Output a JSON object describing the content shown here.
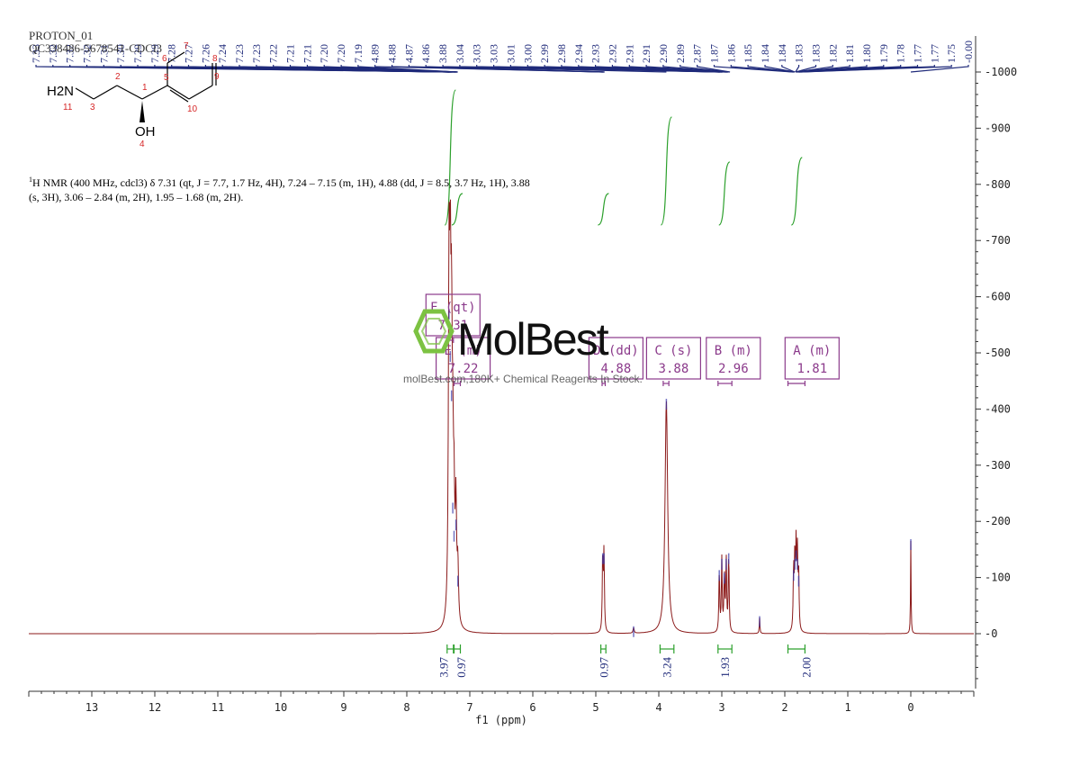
{
  "header": {
    "title_line1": "PROTON_01",
    "title_line2": "QC338486-5678541-CDCl3"
  },
  "description": {
    "nucleus_sup": "1",
    "text": "H NMR (400 MHz, cdcl3) δ 7.31 (qt, J = 7.7, 1.7 Hz, 4H), 7.24 – 7.15 (m, 1H), 4.88 (dd, J = 8.5, 3.7 Hz, 1H), 3.88 (s, 3H), 3.06 – 2.84 (m, 2H), 1.95 – 1.68 (m, 2H)."
  },
  "watermark": {
    "brand": "MolBest",
    "tagline": "molBest.com,180K+ Chemical Reagents In Stock."
  },
  "structure": {
    "label_amine": "H2N",
    "label_hydroxyl": "OH",
    "atom_numbers": [
      "1",
      "2",
      "3",
      "4",
      "5",
      "6",
      "7",
      "8",
      "9",
      "10",
      "11"
    ]
  },
  "colors": {
    "spectrum_line": "#8b1a1a",
    "peak_label": "#1f2a7a",
    "integral_curve": "#2ca02c",
    "multiplet_box": "#8b3a8b",
    "axis": "#333333",
    "atom_number": "#d62728"
  },
  "chart_data": {
    "type": "line",
    "xlabel": "f1 (ppm)",
    "ylabel": "",
    "xlim": [
      14.0,
      -1.0
    ],
    "ylim": [
      -100,
      1000
    ],
    "x_ticks": [
      13,
      12,
      11,
      10,
      9,
      8,
      7,
      6,
      5,
      4,
      3,
      2,
      1,
      0
    ],
    "y_ticks": [
      0,
      100,
      200,
      300,
      400,
      500,
      600,
      700,
      800,
      900,
      1000
    ],
    "x_reversed": true,
    "peaks": [
      {
        "ppm": 7.33,
        "height": 575,
        "width": 0.012
      },
      {
        "ppm": 7.31,
        "height": 500,
        "width": 0.012
      },
      {
        "ppm": 7.29,
        "height": 430,
        "width": 0.012
      },
      {
        "ppm": 7.27,
        "height": 230,
        "width": 0.012
      },
      {
        "ppm": 7.25,
        "height": 180,
        "width": 0.012
      },
      {
        "ppm": 7.22,
        "height": 200,
        "width": 0.012
      },
      {
        "ppm": 7.19,
        "height": 100,
        "width": 0.012
      },
      {
        "ppm": 4.89,
        "height": 140,
        "width": 0.008
      },
      {
        "ppm": 4.87,
        "height": 140,
        "width": 0.008
      },
      {
        "ppm": 4.4,
        "height": 10,
        "width": 0.01
      },
      {
        "ppm": 3.88,
        "height": 415,
        "width": 0.025
      },
      {
        "ppm": 3.04,
        "height": 110,
        "width": 0.008
      },
      {
        "ppm": 3.0,
        "height": 130,
        "width": 0.008
      },
      {
        "ppm": 2.96,
        "height": 105,
        "width": 0.008
      },
      {
        "ppm": 2.93,
        "height": 130,
        "width": 0.008
      },
      {
        "ppm": 2.89,
        "height": 140,
        "width": 0.008
      },
      {
        "ppm": 2.4,
        "height": 28,
        "width": 0.006
      },
      {
        "ppm": 1.86,
        "height": 110,
        "width": 0.008
      },
      {
        "ppm": 1.84,
        "height": 130,
        "width": 0.008
      },
      {
        "ppm": 1.82,
        "height": 145,
        "width": 0.008
      },
      {
        "ppm": 1.8,
        "height": 130,
        "width": 0.008
      },
      {
        "ppm": 1.78,
        "height": 100,
        "width": 0.008
      },
      {
        "ppm": 0.0,
        "height": 165,
        "width": 0.005
      }
    ],
    "peak_labels": [
      "7.33",
      "7.32",
      "7.32",
      "7.32",
      "7.31",
      "7.30",
      "7.29",
      "7.29",
      "7.28",
      "7.27",
      "7.26",
      "7.24",
      "7.23",
      "7.23",
      "7.22",
      "7.21",
      "7.21",
      "7.20",
      "7.20",
      "7.19",
      "4.89",
      "4.88",
      "4.87",
      "4.86",
      "3.88",
      "3.04",
      "3.03",
      "3.03",
      "3.01",
      "3.00",
      "2.99",
      "2.98",
      "2.94",
      "2.93",
      "2.92",
      "2.91",
      "2.91",
      "2.90",
      "2.89",
      "2.87",
      "1.87",
      "1.86",
      "1.85",
      "1.84",
      "1.84",
      "1.83",
      "1.83",
      "1.82",
      "1.81",
      "1.80",
      "1.79",
      "1.78",
      "1.77",
      "1.77",
      "1.75",
      "-0.00"
    ],
    "multiplets": [
      {
        "letter": "F",
        "type": "(qt)",
        "shift": "7.31",
        "from": 7.36,
        "to": 7.26
      },
      {
        "letter": "E",
        "type": "(m)",
        "shift": "7.22",
        "from": 7.25,
        "to": 7.15
      },
      {
        "letter": "D",
        "type": "(dd)",
        "shift": "4.88",
        "from": 4.9,
        "to": 4.85
      },
      {
        "letter": "C",
        "type": "(s)",
        "shift": "3.88",
        "from": 3.93,
        "to": 3.84
      },
      {
        "letter": "B",
        "type": "(m)",
        "shift": "2.96",
        "from": 3.06,
        "to": 2.84
      },
      {
        "letter": "A",
        "type": "(m)",
        "shift": "1.81",
        "from": 1.95,
        "to": 1.68
      }
    ],
    "integrals": [
      {
        "from": 7.36,
        "to": 7.26,
        "value": "3.97"
      },
      {
        "from": 7.25,
        "to": 7.15,
        "value": "0.97"
      },
      {
        "from": 4.92,
        "to": 4.84,
        "value": "0.97"
      },
      {
        "from": 3.98,
        "to": 3.76,
        "value": "3.24"
      },
      {
        "from": 3.06,
        "to": 2.84,
        "value": "1.93"
      },
      {
        "from": 1.95,
        "to": 1.68,
        "value": "2.00"
      }
    ]
  }
}
